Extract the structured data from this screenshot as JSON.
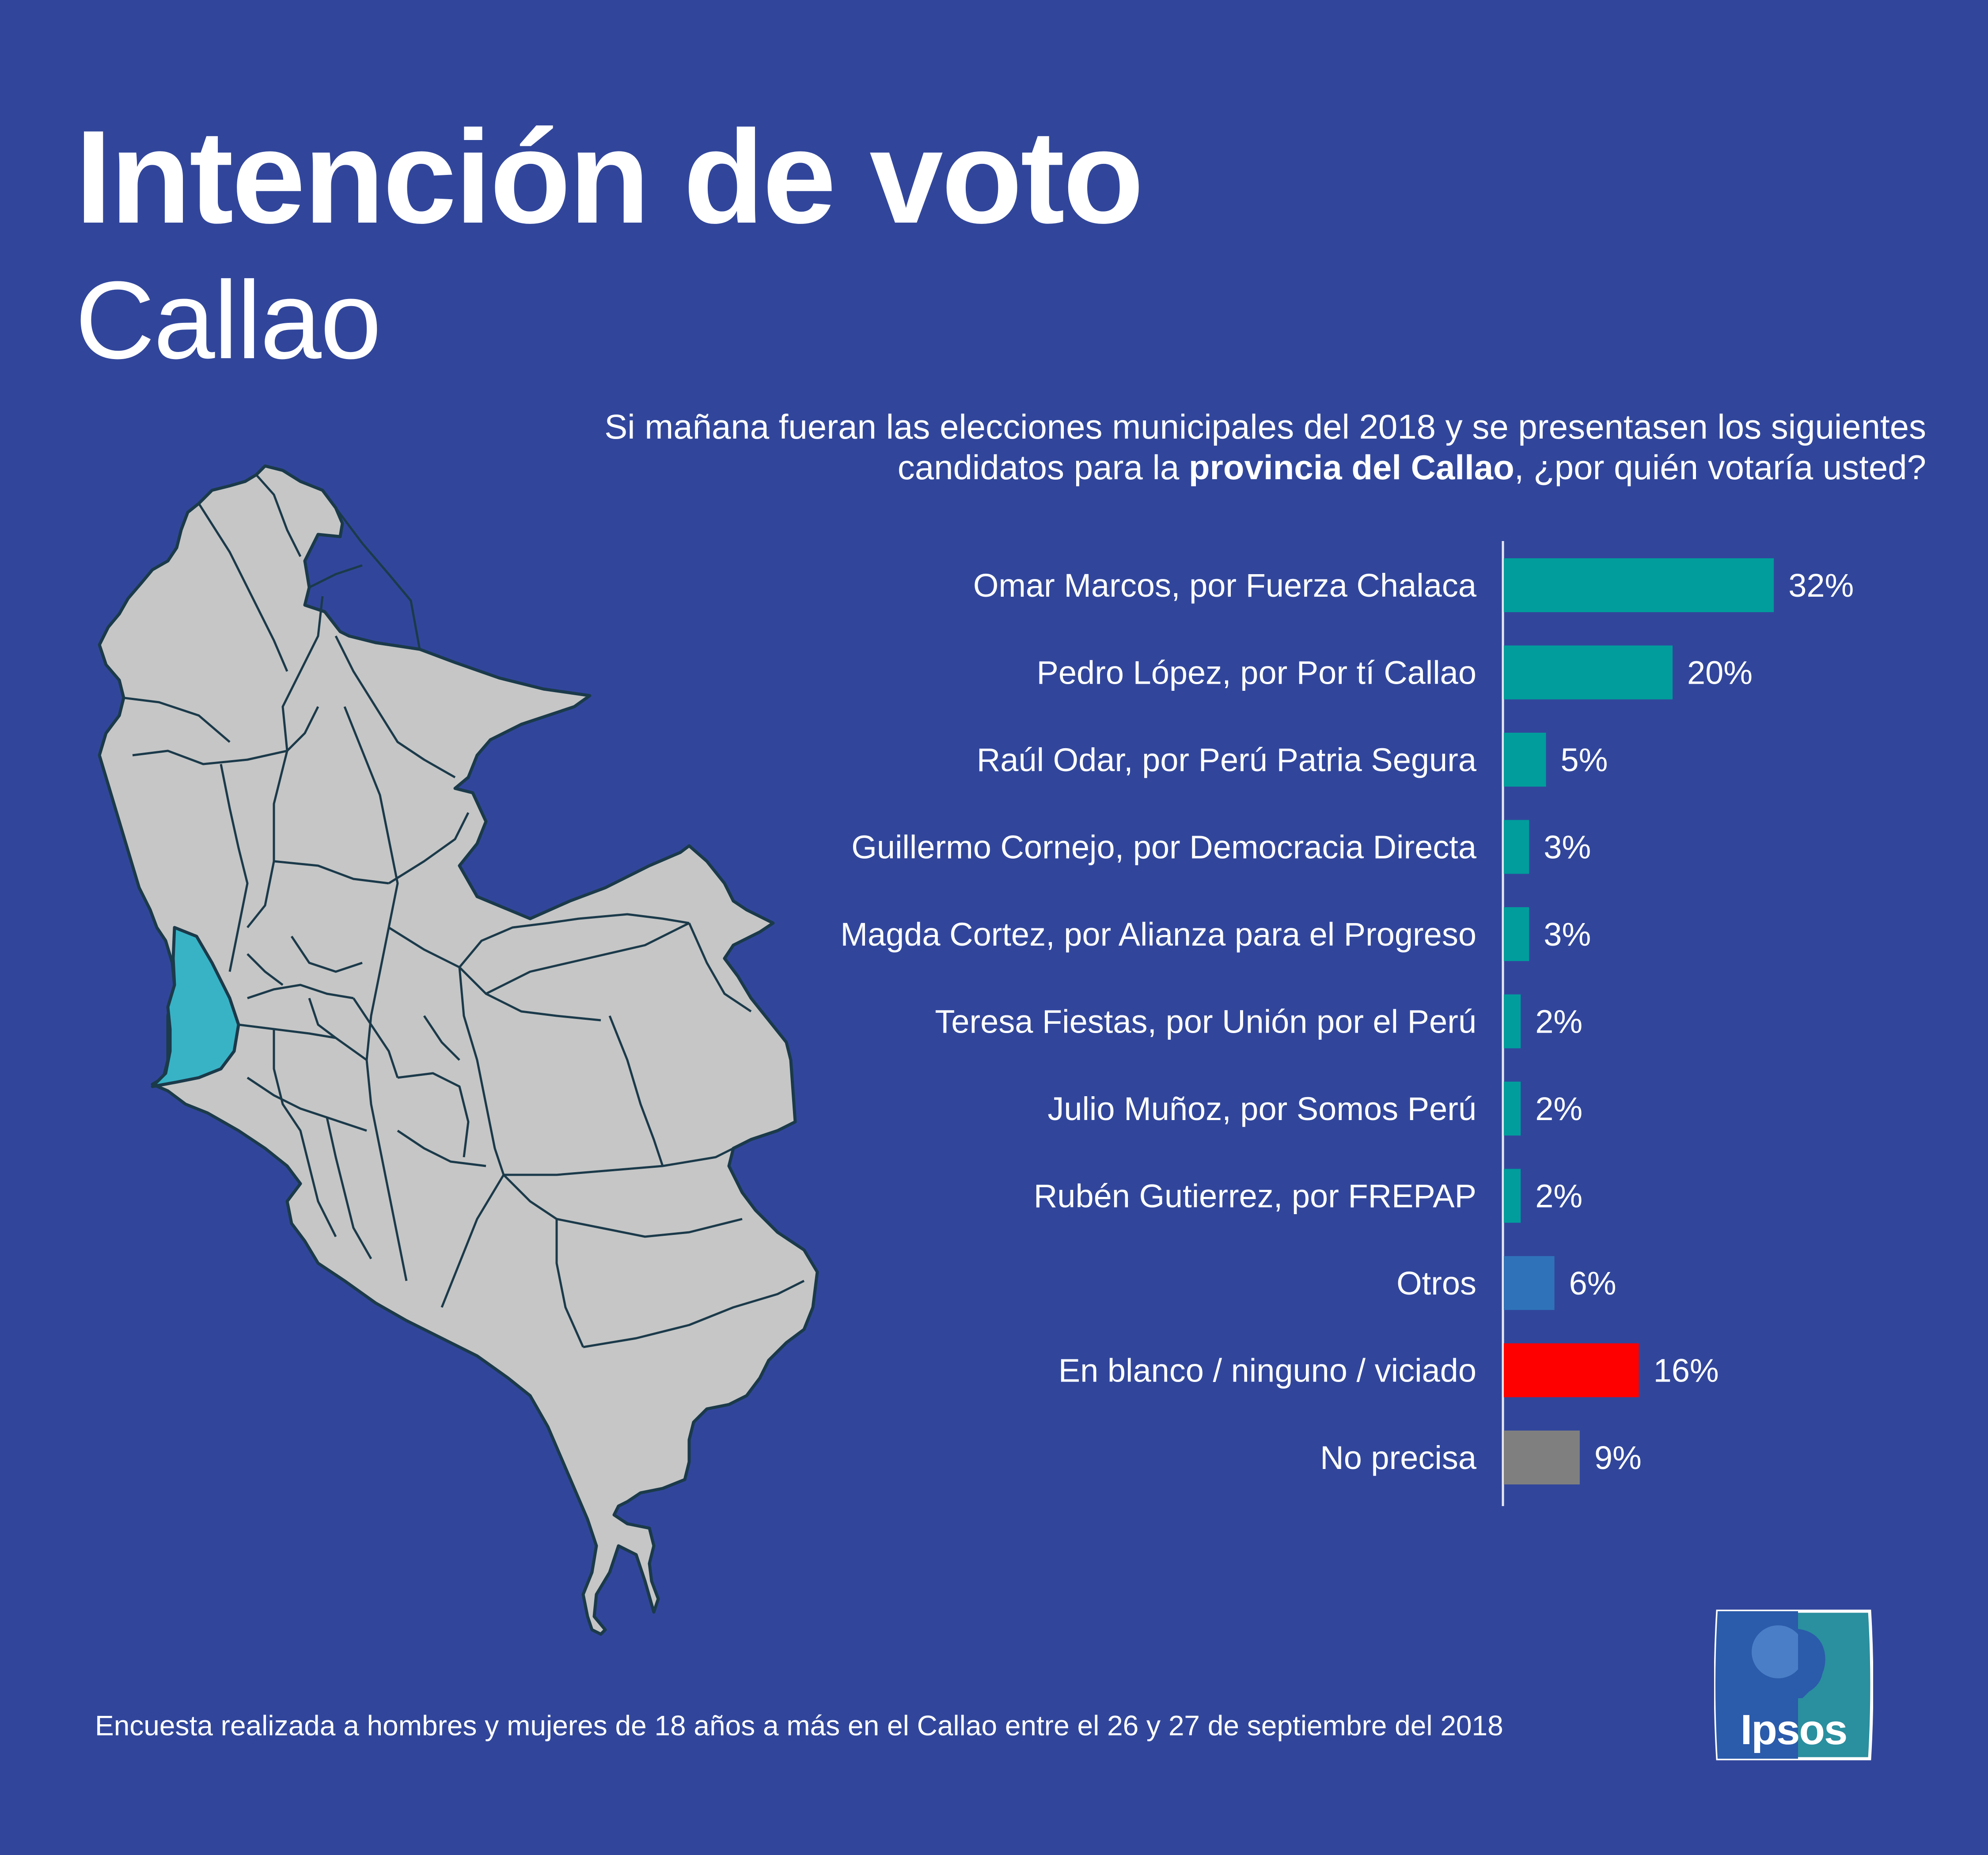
{
  "header": {
    "title": "Intención de voto",
    "subtitle": "Callao"
  },
  "question": {
    "line1": "Si mañana fueran las elecciones municipales del 2018 y se presentasen los siguientes",
    "line2_pre": "candidatos para la ",
    "line2_bold": "provincia del Callao",
    "line2_post": ", ¿por quién votaría usted?"
  },
  "colors": {
    "background": "#31469b",
    "candidate": "#009d9c",
    "otros": "#2f72b9",
    "blanco": "#ff0000",
    "no_precisa": "#7f7f7f",
    "map_fill": "#c6c6c6",
    "map_highlight": "#38b3c6",
    "map_border": "#1b3a4a"
  },
  "chart_data": {
    "type": "bar",
    "orientation": "horizontal",
    "categories": [
      "Omar Marcos, por Fuerza Chalaca",
      "Pedro López, por Por tí Callao",
      "Raúl Odar, por Perú Patria Segura",
      "Guillermo Cornejo, por Democracia Directa",
      "Magda Cortez, por Alianza para el Progreso",
      "Teresa Fiestas, por Unión por el Perú",
      "Julio Muñoz, por Somos Perú",
      "Rubén Gutierrez, por FREPAP",
      "Otros",
      "En blanco / ninguno / viciado",
      "No precisa"
    ],
    "values": [
      32,
      20,
      5,
      3,
      3,
      2,
      2,
      2,
      6,
      16,
      9
    ],
    "value_labels": [
      "32%",
      "20%",
      "5%",
      "3%",
      "3%",
      "2%",
      "2%",
      "2%",
      "6%",
      "16%",
      "9%"
    ],
    "bar_colors": [
      "#009d9c",
      "#009d9c",
      "#009d9c",
      "#009d9c",
      "#009d9c",
      "#009d9c",
      "#009d9c",
      "#009d9c",
      "#2f72b9",
      "#ff0000",
      "#7f7f7f"
    ],
    "xlim": [
      0,
      35
    ],
    "unit": "%",
    "grid": false,
    "legend": "none"
  },
  "map": {
    "highlighted_region": "Callao"
  },
  "footer": {
    "note": "Encuesta realizada a hombres y mujeres de 18 años a más en el Callao entre el 26 y 27 de septiembre del 2018"
  },
  "logo": {
    "text": "Ipsos"
  }
}
